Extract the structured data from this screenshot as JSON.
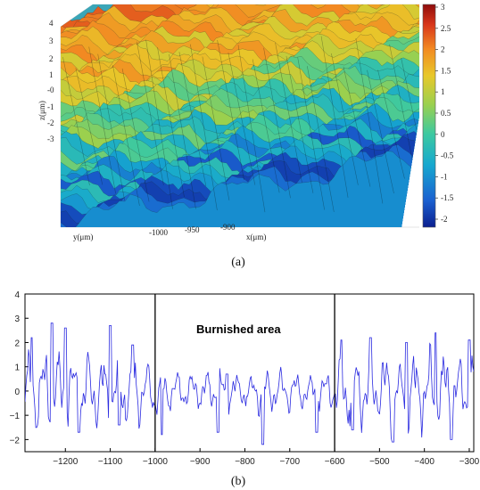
{
  "panel_a": {
    "caption": "(a)",
    "z_axis_label": "z(μm)",
    "z_ticks": [
      "4",
      "3",
      "2",
      "1",
      "-0",
      "-1",
      "-2",
      "-3"
    ],
    "x_axis_label": "x(μm)",
    "x_ticks": [
      "-1000",
      "-950",
      "-900"
    ],
    "y_axis_label": "y(μm)",
    "colorbar_ticks": [
      "3",
      "2.5",
      "2",
      "1.5",
      "1",
      "0.5",
      "0",
      "-0.5",
      "-1",
      "-1.5",
      "-2"
    ],
    "colormap": [
      "#0b1f8f",
      "#1a60d0",
      "#16a8cf",
      "#3dc9a0",
      "#9ad04f",
      "#e8c82a",
      "#f28a22",
      "#d8361b",
      "#8f0c0c"
    ]
  },
  "panel_b": {
    "caption": "(b)",
    "annotation": "Burnished area",
    "line_color": "#2a2ae0",
    "marker_color": "#000000"
  },
  "chart_data": [
    {
      "type": "line",
      "title": "",
      "xlabel": "",
      "ylabel": "",
      "xlim": [
        -1290,
        -290
      ],
      "ylim": [
        -2.5,
        4
      ],
      "xticks": [
        -1200,
        -1100,
        -1000,
        -900,
        -800,
        -700,
        -600,
        -500,
        -400,
        -300
      ],
      "yticks": [
        4,
        3,
        2,
        1,
        0,
        -1,
        -2
      ],
      "vertical_markers": [
        -1000,
        -600
      ],
      "regions": [
        {
          "x_from": -1290,
          "x_to": -1000,
          "amplitude": 1.9
        },
        {
          "x_from": -1000,
          "x_to": -600,
          "amplitude": 0.95
        },
        {
          "x_from": -600,
          "x_to": -290,
          "amplitude": 1.8
        }
      ],
      "peaks": [
        {
          "x": -1275,
          "y": 2.2
        },
        {
          "x": -1230,
          "y": 2.8
        },
        {
          "x": -1200,
          "y": 2.6
        },
        {
          "x": -1100,
          "y": 2.7
        },
        {
          "x": -1050,
          "y": 1.9
        },
        {
          "x": -960,
          "y": 0.1
        },
        {
          "x": -840,
          "y": 0.7
        },
        {
          "x": -620,
          "y": 0.3
        },
        {
          "x": -585,
          "y": 2.1
        },
        {
          "x": -520,
          "y": 2.2
        },
        {
          "x": -440,
          "y": 2.0
        },
        {
          "x": -375,
          "y": 2.4
        },
        {
          "x": -300,
          "y": 2.1
        }
      ],
      "troughs": [
        {
          "x": -1265,
          "y": -1.5
        },
        {
          "x": -1170,
          "y": -1.7
        },
        {
          "x": -1080,
          "y": -1.4
        },
        {
          "x": -985,
          "y": -1.8
        },
        {
          "x": -860,
          "y": -1.7
        },
        {
          "x": -760,
          "y": -2.2
        },
        {
          "x": -640,
          "y": -1.7
        },
        {
          "x": -560,
          "y": -1.6
        },
        {
          "x": -470,
          "y": -2.1
        },
        {
          "x": -340,
          "y": -2.0
        }
      ]
    }
  ]
}
